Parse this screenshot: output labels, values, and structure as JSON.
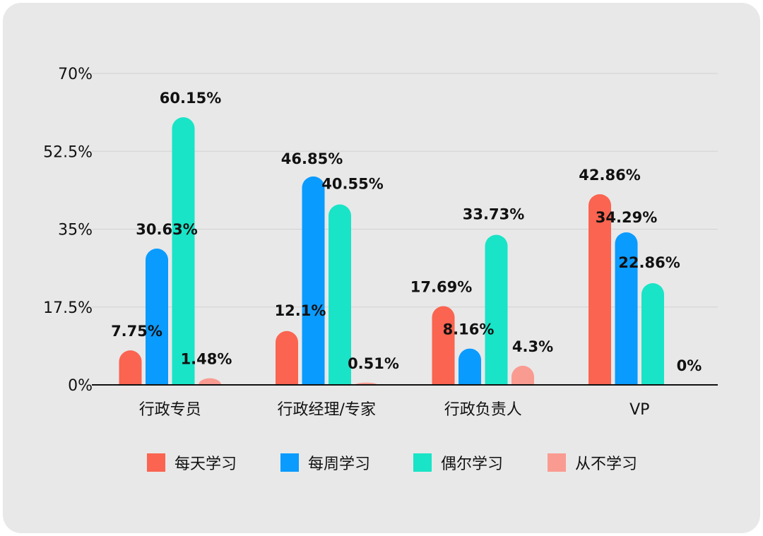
{
  "chart_data": {
    "type": "bar",
    "title": "",
    "xlabel": "",
    "ylabel": "",
    "categories": [
      "行政专员",
      "行政经理/专家",
      "行政负责人",
      "VP"
    ],
    "series": [
      {
        "name": "每天学习",
        "color": "#fa6450",
        "values": [
          7.75,
          12.1,
          17.69,
          42.86
        ],
        "labels": [
          "7.75%",
          "12.1%",
          "17.69%",
          "42.86%"
        ]
      },
      {
        "name": "每周学习",
        "color": "#0a9bff",
        "values": [
          30.63,
          46.85,
          8.16,
          34.29
        ],
        "labels": [
          "30.63%",
          "46.85%",
          "8.16%",
          "34.29%"
        ]
      },
      {
        "name": "偶尔学习",
        "color": "#19e4c7",
        "values": [
          60.15,
          40.55,
          33.73,
          22.86
        ],
        "labels": [
          "60.15%",
          "40.55%",
          "33.73%",
          "22.86%"
        ]
      },
      {
        "name": "从不学习",
        "color": "#fa9b91",
        "values": [
          1.48,
          0.51,
          4.3,
          0
        ],
        "labels": [
          "1.48%",
          "0.51%",
          "4.3%",
          "0%"
        ]
      }
    ],
    "ylim": [
      0,
      70
    ],
    "yticks": [
      0,
      17.5,
      35,
      52.5,
      70
    ],
    "ytick_labels": [
      "0%",
      "17.5%",
      "35%",
      "52.5%",
      "70%"
    ],
    "grid": true,
    "legend_position": "bottom"
  }
}
